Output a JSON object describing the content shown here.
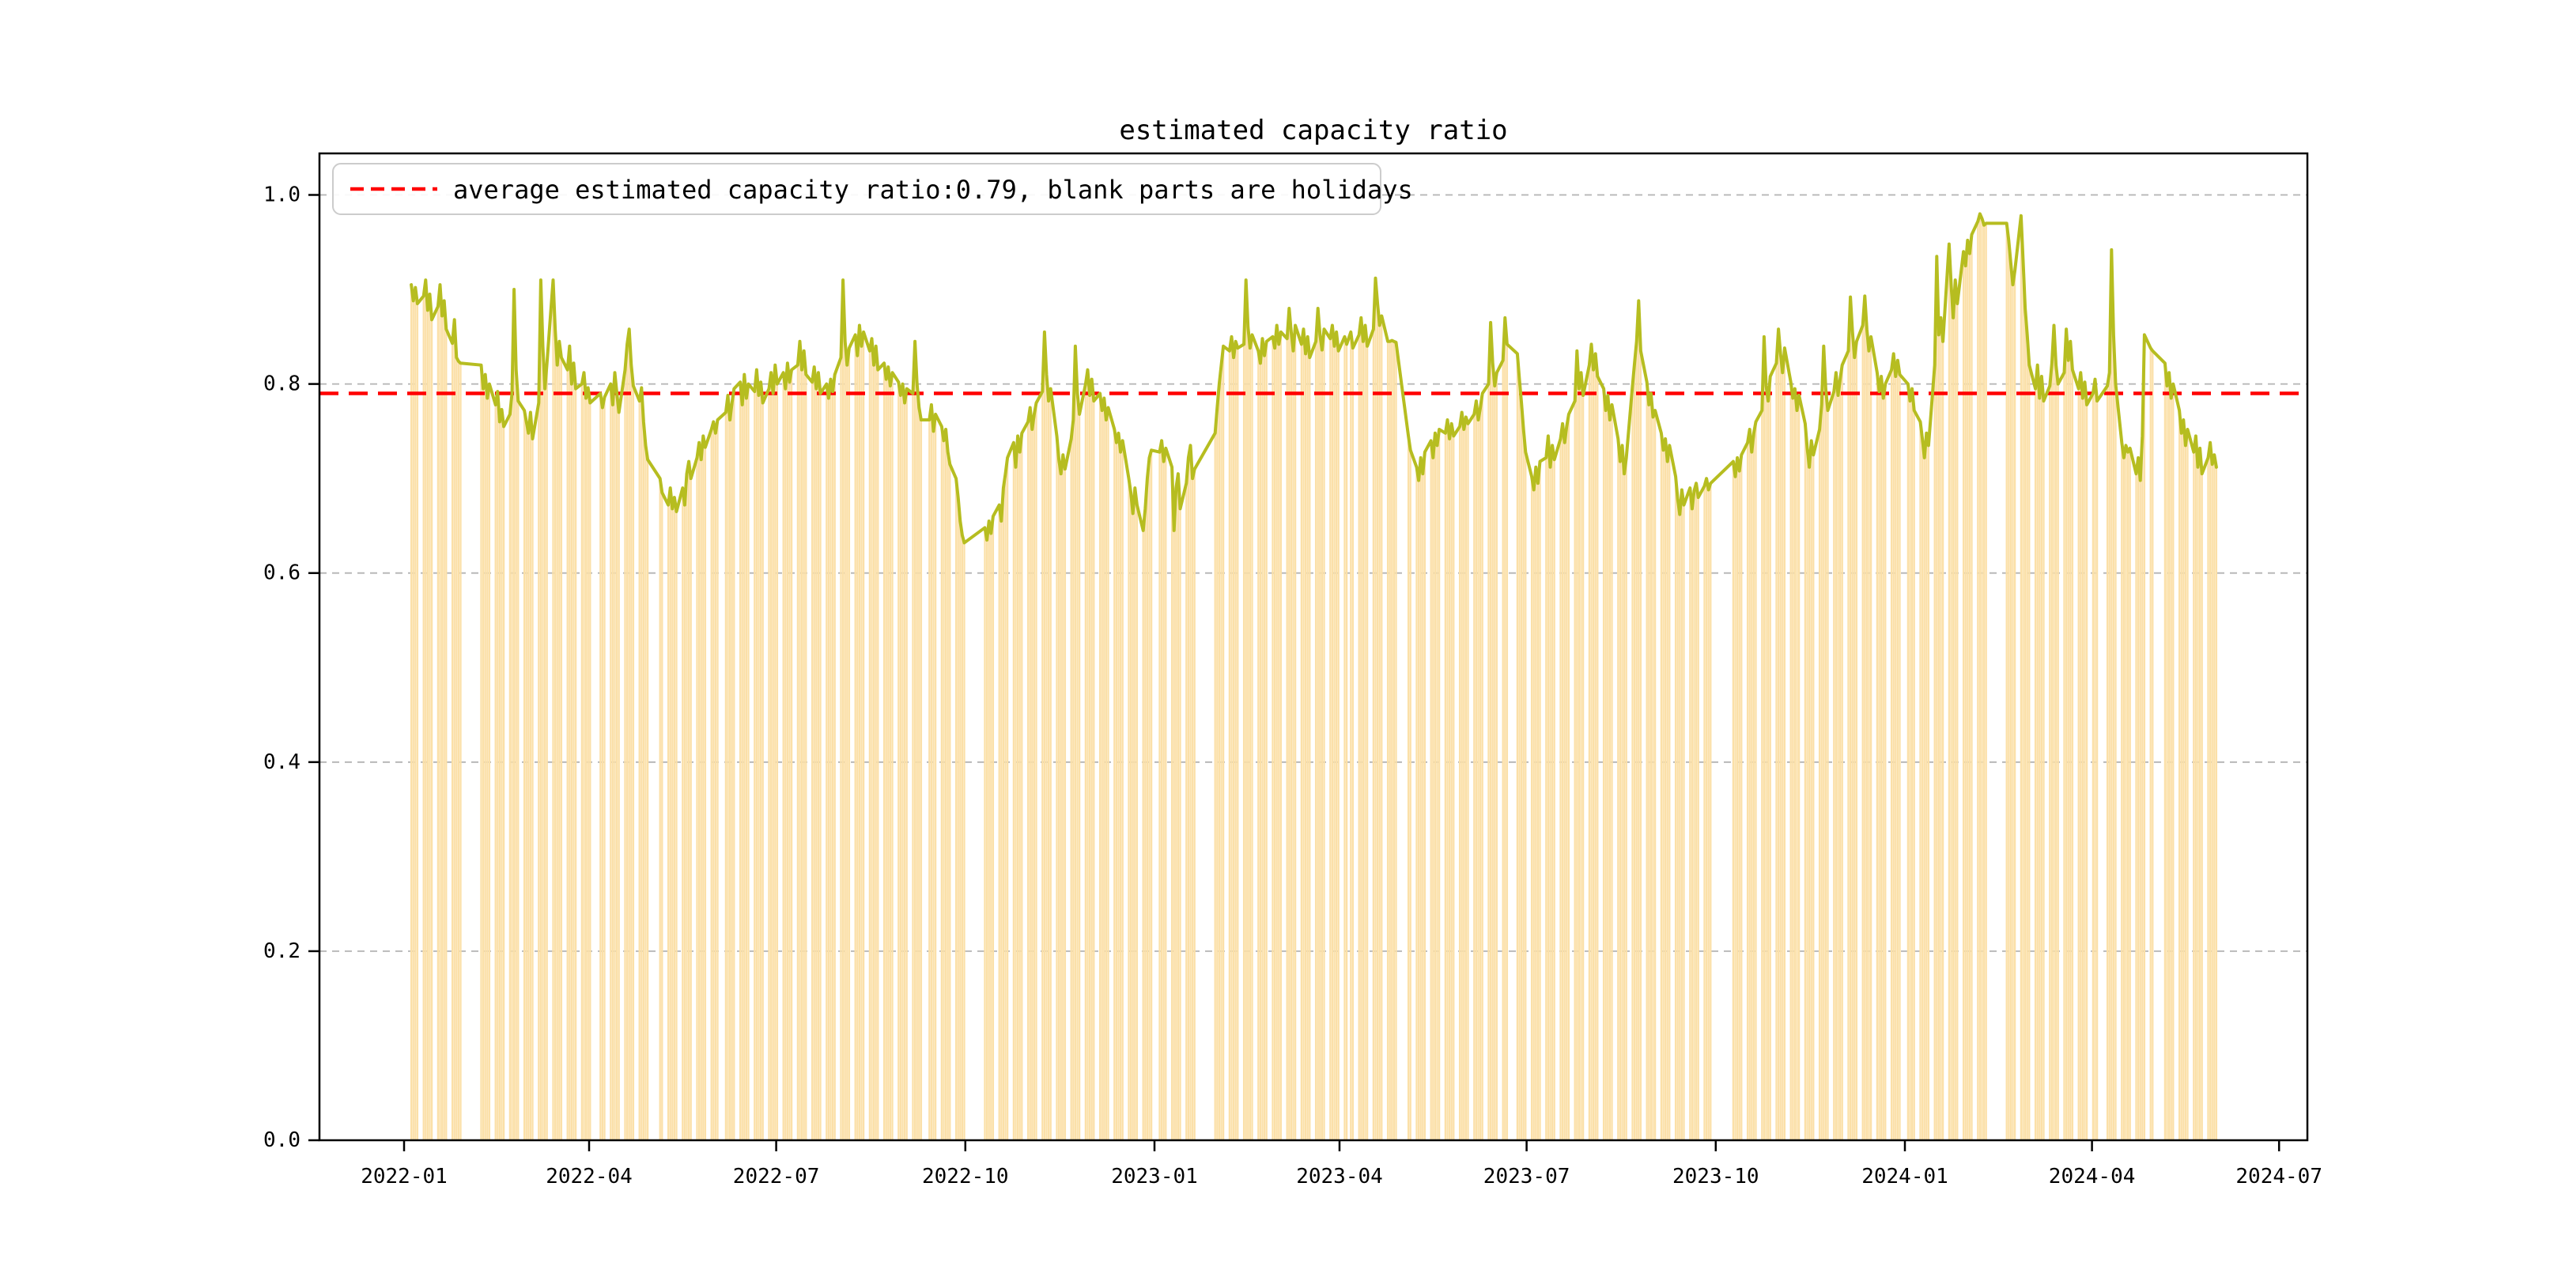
{
  "figure": {
    "background": "#ffffff"
  },
  "legend": {
    "label": "average estimated capacity ratio:0.79, blank parts are holidays",
    "line_color": "#ff0000",
    "line_style": "dashed",
    "position": "upper-left"
  },
  "chart_data": {
    "type": "bar",
    "subtype": "daily workday bars + daily line overlay",
    "title": "estimated capacity ratio",
    "xlabel": "",
    "ylabel": "",
    "ylim": [
      0.0,
      1.0
    ],
    "yticks": [
      "0.0",
      "0.2",
      "0.4",
      "0.6",
      "0.8",
      "1.0"
    ],
    "xticks": [
      "2022-01",
      "2022-04",
      "2022-07",
      "2022-10",
      "2023-01",
      "2023-04",
      "2023-07",
      "2023-10",
      "2024-01",
      "2024-04",
      "2024-07"
    ],
    "x_range": {
      "start": "2022-01-01",
      "end": "2024-07-01"
    },
    "grid": "horizontal dashed",
    "average_line": {
      "value": 0.79,
      "color": "#ff0000",
      "style": "dashed"
    },
    "holiday_note": "blank parts are holidays",
    "colors": {
      "bar": "#FBE0A8",
      "line": "#B6BD20",
      "grid": "#b3b3b3",
      "average": "#ff0000",
      "axis": "#000000",
      "legend_border": "#cccccc"
    },
    "segments": [
      {
        "start": "2022-01-04",
        "values": [
          0.905,
          0.888,
          0.902,
          0.885,
          0.893,
          0.91,
          0.878,
          0.895,
          0.868,
          0.882,
          0.905,
          0.872,
          0.888,
          0.858,
          0.843,
          0.868,
          0.828,
          0.824,
          0.822
        ]
      },
      {
        "start": "2022-02-07",
        "values": [
          0.82,
          0.795,
          0.81,
          0.785,
          0.8,
          0.778,
          0.792,
          0.76,
          0.773,
          0.755,
          0.768,
          0.79,
          0.9,
          0.815,
          0.782,
          0.772,
          0.76,
          0.748,
          0.77,
          0.742,
          0.78,
          0.91,
          0.84,
          0.795,
          0.822,
          0.91,
          0.858,
          0.82,
          0.845,
          0.828,
          0.815,
          0.84,
          0.8,
          0.822,
          0.795,
          0.8,
          0.812,
          0.785,
          0.796,
          0.78
        ]
      },
      {
        "start": "2022-04-06",
        "values": [
          0.79,
          0.775,
          0.786,
          0.8,
          0.778,
          0.812,
          0.79,
          0.77,
          0.815,
          0.842,
          0.858,
          0.82,
          0.798,
          0.782,
          0.796,
          0.76,
          0.735,
          0.72
        ]
      },
      {
        "start": "2022-05-05",
        "values": [
          0.7,
          0.685,
          0.672,
          0.69,
          0.668,
          0.68,
          0.665,
          0.69,
          0.672,
          0.705,
          0.718,
          0.7,
          0.722,
          0.738,
          0.72,
          0.745,
          0.733,
          0.752,
          0.76,
          0.748,
          0.762
        ]
      },
      {
        "start": "2022-06-06",
        "values": [
          0.77,
          0.788,
          0.762,
          0.78,
          0.795,
          0.802,
          0.778,
          0.81,
          0.785,
          0.8,
          0.792,
          0.815,
          0.788,
          0.802,
          0.78,
          0.795,
          0.812,
          0.79,
          0.82,
          0.8,
          0.812,
          0.795,
          0.822,
          0.802,
          0.815,
          0.82,
          0.845,
          0.815,
          0.835,
          0.81,
          0.802,
          0.818,
          0.795,
          0.812,
          0.79,
          0.8,
          0.785,
          0.805,
          0.792,
          0.81,
          0.828,
          0.91,
          0.845,
          0.82,
          0.838,
          0.852,
          0.83,
          0.862,
          0.84,
          0.855,
          0.835,
          0.848,
          0.82,
          0.84,
          0.815,
          0.822,
          0.805,
          0.818,
          0.798,
          0.812,
          0.802,
          0.788,
          0.8,
          0.78,
          0.795,
          0.79,
          0.845,
          0.8,
          0.775,
          0.762
        ]
      },
      {
        "start": "2022-09-13",
        "values": [
          0.762,
          0.778,
          0.75,
          0.768,
          0.755,
          0.74,
          0.752,
          0.728,
          0.715,
          0.7,
          0.68,
          0.655,
          0.64,
          0.632
        ]
      },
      {
        "start": "2022-10-10",
        "values": [
          0.648,
          0.635,
          0.655,
          0.642,
          0.66,
          0.672,
          0.655,
          0.69,
          0.705,
          0.722,
          0.738,
          0.712,
          0.745,
          0.728,
          0.748,
          0.76,
          0.775,
          0.752,
          0.768,
          0.78,
          0.792,
          0.855,
          0.81,
          0.782,
          0.795,
          0.745,
          0.72,
          0.705,
          0.725,
          0.71,
          0.742,
          0.762,
          0.84,
          0.79,
          0.768,
          0.8,
          0.815,
          0.788,
          0.805,
          0.782,
          0.79,
          0.772,
          0.785,
          0.762,
          0.775,
          0.752,
          0.738,
          0.748,
          0.728,
          0.74,
          0.7,
          0.685,
          0.663,
          0.69,
          0.672,
          0.645,
          0.668,
          0.7,
          0.722,
          0.73
        ]
      },
      {
        "start": "2023-01-03",
        "values": [
          0.728,
          0.74,
          0.718,
          0.732,
          0.712,
          0.645,
          0.69,
          0.705,
          0.668,
          0.695,
          0.722,
          0.735,
          0.7,
          0.71
        ]
      },
      {
        "start": "2023-01-30",
        "values": [
          0.748,
          0.775,
          0.8,
          0.82,
          0.84,
          0.835,
          0.85,
          0.828,
          0.845,
          0.838,
          0.842,
          0.91,
          0.86,
          0.838,
          0.852,
          0.835,
          0.822,
          0.848,
          0.83,
          0.845,
          0.85,
          0.838,
          0.862,
          0.842,
          0.855,
          0.848,
          0.88,
          0.855,
          0.835,
          0.862,
          0.842,
          0.858,
          0.832,
          0.85,
          0.828,
          0.845,
          0.88,
          0.852,
          0.836,
          0.858,
          0.848,
          0.862,
          0.84,
          0.855,
          0.835,
          0.85,
          0.842
        ]
      },
      {
        "start": "2023-04-06",
        "values": [
          0.855,
          0.838,
          0.852,
          0.87,
          0.845,
          0.862,
          0.84,
          0.858,
          0.912,
          0.885,
          0.862,
          0.872,
          0.845,
          0.845,
          0.846,
          0.845,
          0.844
        ]
      },
      {
        "start": "2023-05-04",
        "values": [
          0.745,
          0.73,
          0.712,
          0.698,
          0.722,
          0.705,
          0.728,
          0.74,
          0.722,
          0.748,
          0.735,
          0.752,
          0.748,
          0.762,
          0.742,
          0.758,
          0.745,
          0.755,
          0.77,
          0.752,
          0.765,
          0.758,
          0.768,
          0.782,
          0.762,
          0.775,
          0.79,
          0.8,
          0.865,
          0.822,
          0.798,
          0.812,
          0.825,
          0.87,
          0.842
        ]
      },
      {
        "start": "2023-06-26",
        "values": [
          0.832,
          0.805,
          0.78,
          0.752,
          0.728,
          0.702,
          0.688,
          0.712,
          0.695,
          0.718,
          0.722,
          0.745,
          0.712,
          0.735,
          0.72,
          0.742,
          0.758,
          0.738,
          0.755,
          0.768,
          0.782,
          0.835,
          0.795,
          0.812,
          0.788,
          0.82,
          0.842,
          0.815,
          0.832,
          0.808,
          0.795,
          0.772,
          0.788,
          0.762,
          0.778,
          0.742,
          0.718,
          0.735,
          0.705,
          0.722,
          0.798,
          0.822,
          0.845,
          0.888,
          0.835,
          0.802,
          0.778,
          0.79,
          0.765,
          0.772,
          0.748,
          0.73,
          0.742,
          0.718,
          0.735,
          0.702,
          0.678,
          0.662,
          0.688,
          0.672,
          0.69,
          0.668,
          0.687,
          0.695,
          0.68,
          0.692,
          0.7,
          0.688,
          0.695
        ]
      },
      {
        "start": "2023-10-09",
        "values": [
          0.718,
          0.702,
          0.722,
          0.708,
          0.725,
          0.738,
          0.752,
          0.728,
          0.748,
          0.76,
          0.772,
          0.85,
          0.798,
          0.782,
          0.808,
          0.822,
          0.858,
          0.832,
          0.812,
          0.838,
          0.802,
          0.785,
          0.795,
          0.772,
          0.788,
          0.758,
          0.732,
          0.712,
          0.74,
          0.725,
          0.752,
          0.778,
          0.84,
          0.795,
          0.772,
          0.792,
          0.812,
          0.788,
          0.805,
          0.82,
          0.835,
          0.892,
          0.855,
          0.828,
          0.845,
          0.862,
          0.893,
          0.858,
          0.835,
          0.85,
          0.812,
          0.792,
          0.808,
          0.785,
          0.8,
          0.815,
          0.832,
          0.808,
          0.825,
          0.81
        ]
      },
      {
        "start": "2024-01-02",
        "values": [
          0.8,
          0.782,
          0.795,
          0.772,
          0.76,
          0.742,
          0.722,
          0.748,
          0.735,
          0.82,
          0.935,
          0.852,
          0.87,
          0.845,
          0.948,
          0.905,
          0.87,
          0.91,
          0.885,
          0.94,
          0.925,
          0.952,
          0.938,
          0.958,
          0.972,
          0.98,
          0.975,
          0.968,
          0.97
        ]
      },
      {
        "start": "2024-02-19",
        "values": [
          0.97,
          0.952,
          0.928,
          0.905,
          0.92,
          0.978,
          0.93,
          0.88,
          0.852,
          0.82,
          0.795,
          0.82,
          0.785,
          0.808,
          0.782,
          0.798,
          0.822,
          0.862,
          0.82,
          0.8,
          0.812,
          0.858,
          0.825,
          0.845,
          0.815,
          0.795,
          0.812,
          0.785,
          0.802,
          0.778,
          0.79,
          0.805,
          0.782
        ]
      },
      {
        "start": "2024-04-08",
        "values": [
          0.798,
          0.812,
          0.942,
          0.852,
          0.8,
          0.738,
          0.722,
          0.735,
          0.728,
          0.732,
          0.705,
          0.722,
          0.698,
          0.745,
          0.852,
          0.838,
          0.835
        ]
      },
      {
        "start": "2024-05-06",
        "values": [
          0.822,
          0.798,
          0.812,
          0.785,
          0.8,
          0.772,
          0.748,
          0.762,
          0.735,
          0.752,
          0.728,
          0.745,
          0.712,
          0.732,
          0.705,
          0.722,
          0.738,
          0.715,
          0.725,
          0.712
        ]
      }
    ]
  }
}
